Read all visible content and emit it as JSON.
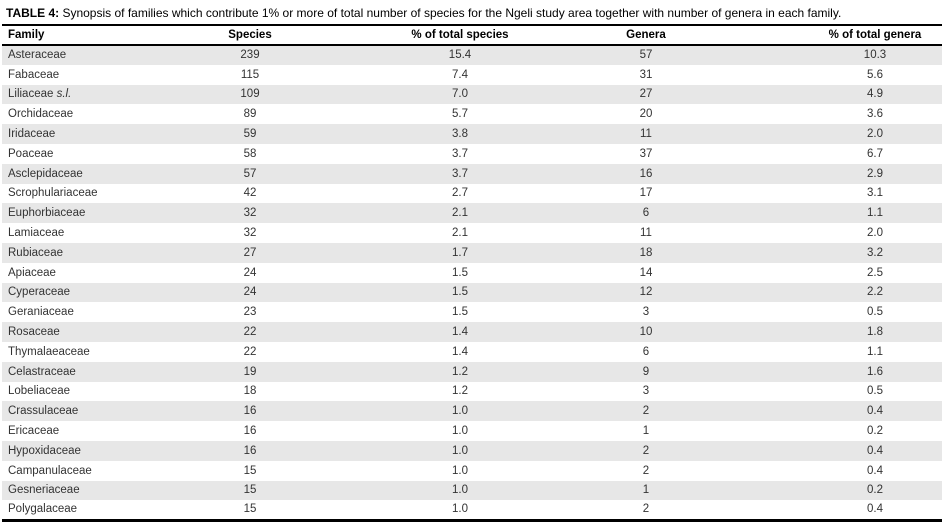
{
  "caption": {
    "label": "TABLE 4:",
    "text": "Synopsis of families which contribute 1% or more of total number of species for the Ngeli study area together with number of genera in each family."
  },
  "table": {
    "headers": [
      "Family",
      "Species",
      "% of total species",
      "Genera",
      "% of total genera"
    ],
    "rows": [
      {
        "family": "Asteraceae",
        "family_suffix": "",
        "species": "239",
        "pct_species": "15.4",
        "genera": "57",
        "pct_genera": "10.3"
      },
      {
        "family": "Fabaceae",
        "family_suffix": "",
        "species": "115",
        "pct_species": "7.4",
        "genera": "31",
        "pct_genera": "5.6"
      },
      {
        "family": "Liliaceae",
        "family_suffix": "s.l.",
        "species": "109",
        "pct_species": "7.0",
        "genera": "27",
        "pct_genera": "4.9"
      },
      {
        "family": "Orchidaceae",
        "family_suffix": "",
        "species": "89",
        "pct_species": "5.7",
        "genera": "20",
        "pct_genera": "3.6"
      },
      {
        "family": "Iridaceae",
        "family_suffix": "",
        "species": "59",
        "pct_species": "3.8",
        "genera": "11",
        "pct_genera": "2.0"
      },
      {
        "family": "Poaceae",
        "family_suffix": "",
        "species": "58",
        "pct_species": "3.7",
        "genera": "37",
        "pct_genera": "6.7"
      },
      {
        "family": "Asclepidaceae",
        "family_suffix": "",
        "species": "57",
        "pct_species": "3.7",
        "genera": "16",
        "pct_genera": "2.9"
      },
      {
        "family": "Scrophulariaceae",
        "family_suffix": "",
        "species": "42",
        "pct_species": "2.7",
        "genera": "17",
        "pct_genera": "3.1"
      },
      {
        "family": "Euphorbiaceae",
        "family_suffix": "",
        "species": "32",
        "pct_species": "2.1",
        "genera": "6",
        "pct_genera": "1.1"
      },
      {
        "family": "Lamiaceae",
        "family_suffix": "",
        "species": "32",
        "pct_species": "2.1",
        "genera": "11",
        "pct_genera": "2.0"
      },
      {
        "family": "Rubiaceae",
        "family_suffix": "",
        "species": "27",
        "pct_species": "1.7",
        "genera": "18",
        "pct_genera": "3.2"
      },
      {
        "family": "Apiaceae",
        "family_suffix": "",
        "species": "24",
        "pct_species": "1.5",
        "genera": "14",
        "pct_genera": "2.5"
      },
      {
        "family": "Cyperaceae",
        "family_suffix": "",
        "species": "24",
        "pct_species": "1.5",
        "genera": "12",
        "pct_genera": "2.2"
      },
      {
        "family": "Geraniaceae",
        "family_suffix": "",
        "species": "23",
        "pct_species": "1.5",
        "genera": "3",
        "pct_genera": "0.5"
      },
      {
        "family": "Rosaceae",
        "family_suffix": "",
        "species": "22",
        "pct_species": "1.4",
        "genera": "10",
        "pct_genera": "1.8"
      },
      {
        "family": "Thymalaeaceae",
        "family_suffix": "",
        "species": "22",
        "pct_species": "1.4",
        "genera": "6",
        "pct_genera": "1.1"
      },
      {
        "family": "Celastraceae",
        "family_suffix": "",
        "species": "19",
        "pct_species": "1.2",
        "genera": "9",
        "pct_genera": "1.6"
      },
      {
        "family": "Lobeliaceae",
        "family_suffix": "",
        "species": "18",
        "pct_species": "1.2",
        "genera": "3",
        "pct_genera": "0.5"
      },
      {
        "family": "Crassulaceae",
        "family_suffix": "",
        "species": "16",
        "pct_species": "1.0",
        "genera": "2",
        "pct_genera": "0.4"
      },
      {
        "family": "Ericaceae",
        "family_suffix": "",
        "species": "16",
        "pct_species": "1.0",
        "genera": "1",
        "pct_genera": "0.2"
      },
      {
        "family": "Hypoxidaceae",
        "family_suffix": "",
        "species": "16",
        "pct_species": "1.0",
        "genera": "2",
        "pct_genera": "0.4"
      },
      {
        "family": "Campanulaceae",
        "family_suffix": "",
        "species": "15",
        "pct_species": "1.0",
        "genera": "2",
        "pct_genera": "0.4"
      },
      {
        "family": "Gesneriaceae",
        "family_suffix": "",
        "species": "15",
        "pct_species": "1.0",
        "genera": "1",
        "pct_genera": "0.2"
      },
      {
        "family": "Polygalaceae",
        "family_suffix": "",
        "species": "15",
        "pct_species": "1.0",
        "genera": "2",
        "pct_genera": "0.4"
      }
    ]
  },
  "colors": {
    "row_stripe": "#e7e7e7",
    "border": "#000000",
    "body_text": "#333333"
  }
}
